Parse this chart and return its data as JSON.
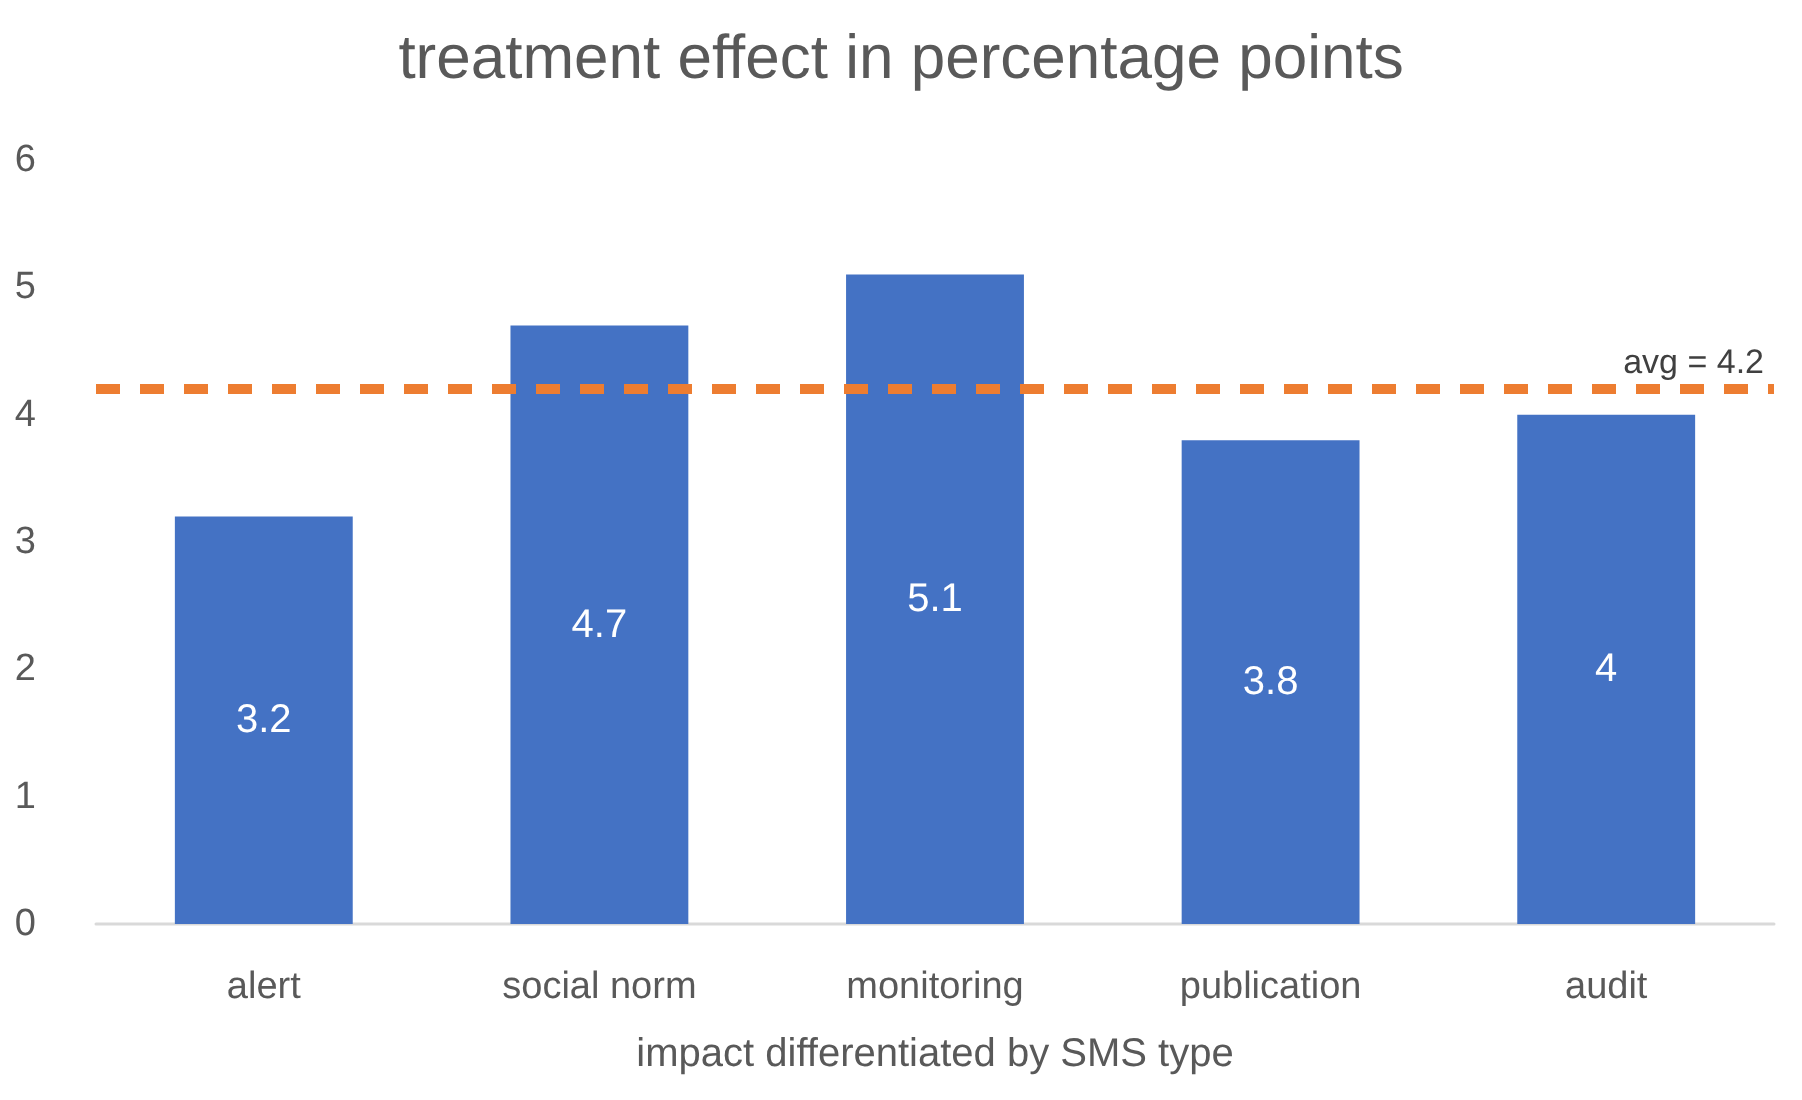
{
  "chart_data": {
    "type": "bar",
    "title": "treatment effect in percentage points",
    "xlabel": "impact differentiated by SMS type",
    "categories": [
      "alert",
      "social norm",
      "monitoring",
      "publication",
      "audit"
    ],
    "values": [
      3.2,
      4.7,
      5.1,
      3.8,
      4
    ],
    "color": "#4472c4",
    "ylim": [
      0,
      6
    ],
    "yticks": [
      0,
      1,
      2,
      3,
      4,
      5,
      6
    ],
    "grid": false,
    "data_labels": true,
    "ref_lines": [
      {
        "axis": "y",
        "value": 4.2,
        "label": "avg = 4.2",
        "color": "#ed7d31",
        "line_style": "dashed"
      }
    ]
  }
}
